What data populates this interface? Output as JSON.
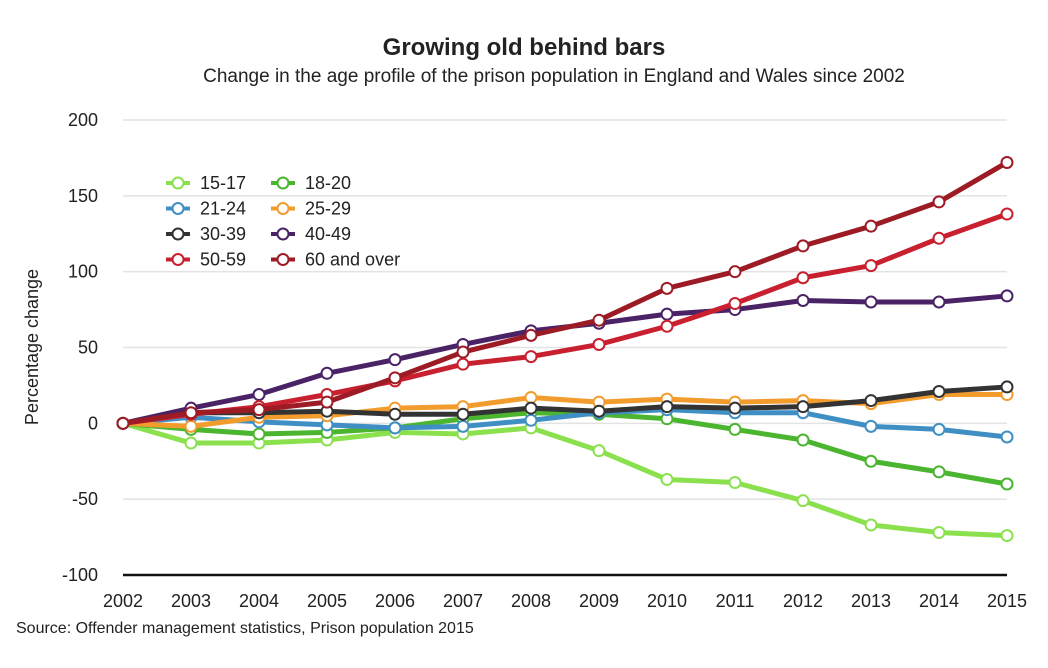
{
  "chart_data": {
    "type": "line",
    "title": "Growing old behind bars",
    "subtitle": "Change in the age profile of the prison population in England and Wales since 2002",
    "source": "Source: Offender management statistics, Prison population 2015",
    "ylabel": "Percentage change",
    "xlabel": "",
    "x": [
      2002,
      2003,
      2004,
      2005,
      2006,
      2007,
      2008,
      2009,
      2010,
      2011,
      2012,
      2013,
      2014,
      2015
    ],
    "ylim": [
      -100,
      200
    ],
    "yticks": [
      -100,
      -50,
      0,
      50,
      100,
      150,
      200
    ],
    "grid": true,
    "legend": "top-left",
    "series": [
      {
        "name": "15-17",
        "color": "#8be04e",
        "values": [
          0,
          -13,
          -13,
          -11,
          -6,
          -7,
          -3,
          -18,
          -37,
          -39,
          -51,
          -67,
          -72,
          -74
        ]
      },
      {
        "name": "18-20",
        "color": "#4bb52f",
        "values": [
          0,
          -4,
          -7,
          -6,
          -3,
          3,
          7,
          6,
          3,
          -4,
          -11,
          -25,
          -32,
          -40
        ]
      },
      {
        "name": "21-24",
        "color": "#3f8fc4",
        "values": [
          0,
          4,
          1,
          -1,
          -3,
          -2,
          2,
          7,
          9,
          7,
          7,
          -2,
          -4,
          -9
        ]
      },
      {
        "name": "25-29",
        "color": "#f39c2e",
        "values": [
          0,
          -2,
          4,
          5,
          10,
          11,
          17,
          14,
          16,
          14,
          15,
          13,
          19,
          19
        ]
      },
      {
        "name": "30-39",
        "color": "#333333",
        "values": [
          0,
          7,
          7,
          8,
          6,
          6,
          10,
          8,
          11,
          10,
          11,
          15,
          21,
          24
        ]
      },
      {
        "name": "40-49",
        "color": "#4a2266",
        "values": [
          0,
          10,
          19,
          33,
          42,
          52,
          61,
          66,
          72,
          75,
          81,
          80,
          80,
          84
        ]
      },
      {
        "name": "50-59",
        "color": "#c8202f",
        "values": [
          0,
          6,
          11,
          19,
          28,
          39,
          44,
          52,
          64,
          79,
          96,
          104,
          122,
          138
        ]
      },
      {
        "name": "60 and over",
        "color": "#9c1b25",
        "values": [
          0,
          7,
          9,
          14,
          30,
          47,
          58,
          68,
          89,
          100,
          117,
          130,
          146,
          172
        ]
      }
    ]
  }
}
